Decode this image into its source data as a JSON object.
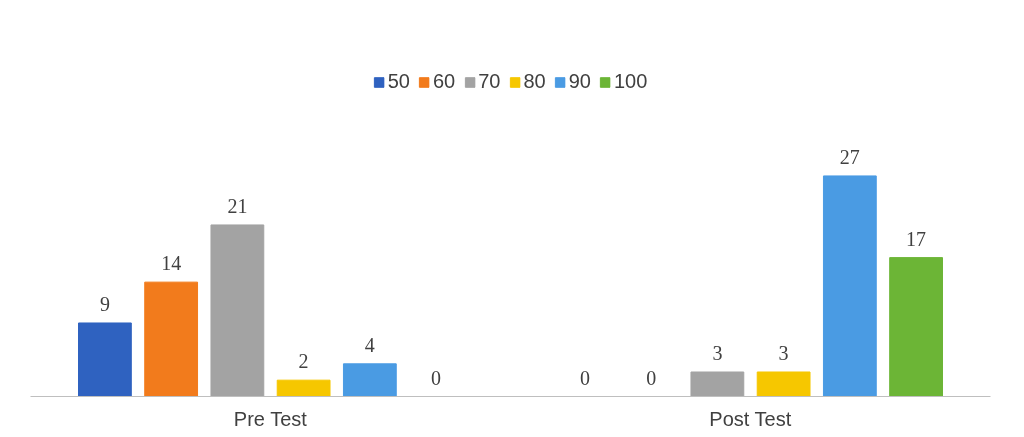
{
  "chart_data": {
    "type": "bar",
    "categories": [
      "Pre Test",
      "Post Test"
    ],
    "series": [
      {
        "name": "50",
        "color": "#2f62c0",
        "values": [
          9,
          0
        ]
      },
      {
        "name": "60",
        "color": "#f27b1c",
        "values": [
          14,
          0
        ]
      },
      {
        "name": "70",
        "color": "#a3a3a3",
        "values": [
          21,
          3
        ]
      },
      {
        "name": "80",
        "color": "#f6c700",
        "values": [
          2,
          3
        ]
      },
      {
        "name": "90",
        "color": "#4a9be3",
        "values": [
          4,
          27
        ]
      },
      {
        "name": "100",
        "color": "#6cb536",
        "values": [
          0,
          17
        ]
      }
    ],
    "data_labels": true,
    "legend": "top",
    "grid": false
  }
}
